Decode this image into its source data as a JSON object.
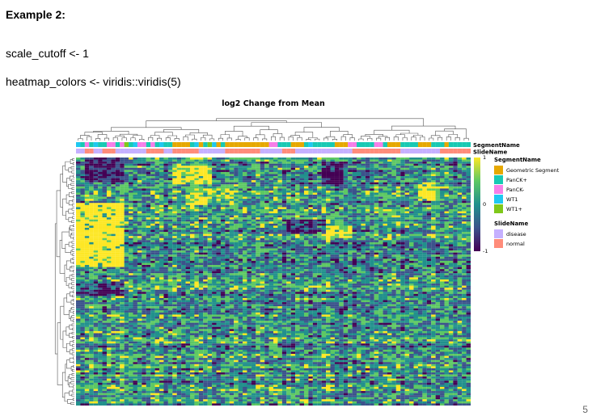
{
  "slide": {
    "title": "Example  2:",
    "code_line_1": "scale_cutoff <- 1",
    "code_line_2": "heatmap_colors <- viridis::viridis(5)",
    "page_number": "5"
  },
  "chart_data": {
    "type": "heatmap",
    "title": "log2 Change from Mean",
    "color_scale": {
      "name": "viridis",
      "colors": [
        "#440154",
        "#3b528b",
        "#21908c",
        "#5dc863",
        "#fde725"
      ],
      "min": -1,
      "max": 1,
      "ticks": [
        "1",
        "0",
        "-1"
      ]
    },
    "annotation_rows": [
      "SegmentName",
      "SlideName"
    ],
    "legend": {
      "segment_title": "SegmentName",
      "segment_items": [
        {
          "label": "Geometric Segment",
          "color": "#e6a800"
        },
        {
          "label": "PanCK+",
          "color": "#18c9b3"
        },
        {
          "label": "PanCK-",
          "color": "#f77ee8"
        },
        {
          "label": "WT1",
          "color": "#1fc8f0"
        },
        {
          "label": "WT1+",
          "color": "#7fc81a"
        }
      ],
      "slide_title": "SlideName",
      "slide_items": [
        {
          "label": "disease",
          "color": "#c5b0ff"
        },
        {
          "label": "normal",
          "color": "#ff8c7a"
        }
      ]
    },
    "n_rows": 120,
    "n_cols": 90,
    "row_dendrogram": true,
    "column_dendrogram": true
  }
}
